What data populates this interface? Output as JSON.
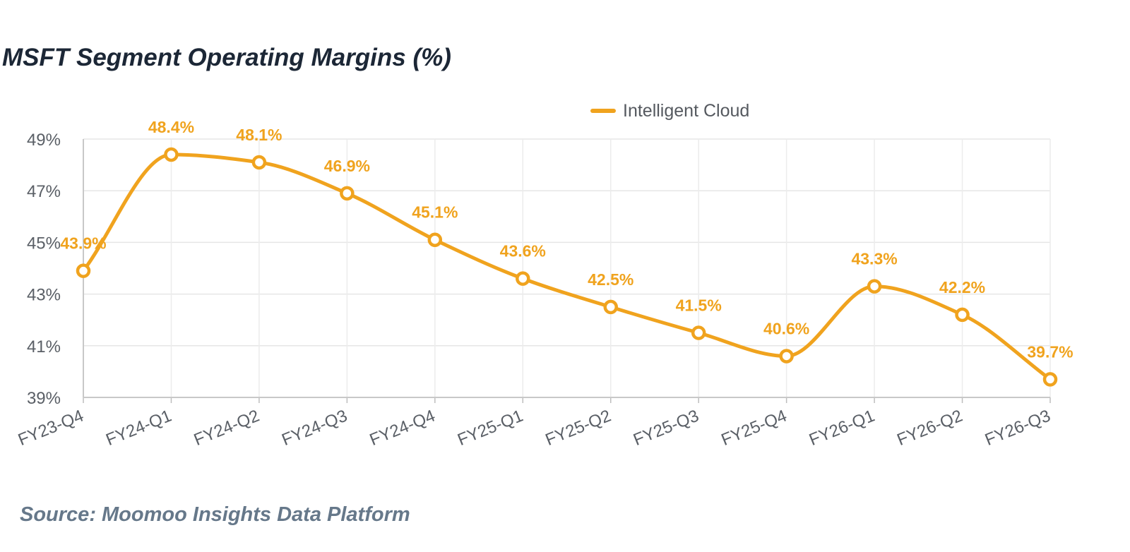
{
  "chart_data": {
    "type": "line",
    "title": "MSFT Segment Operating Margins (%)",
    "source": "Source: Moomoo Insights Data Platform",
    "categories": [
      "FY23-Q4",
      "FY24-Q1",
      "FY24-Q2",
      "FY24-Q3",
      "FY24-Q4",
      "FY25-Q1",
      "FY25-Q2",
      "FY25-Q3",
      "FY25-Q4",
      "FY26-Q1",
      "FY26-Q2",
      "FY26-Q3"
    ],
    "series": [
      {
        "name": "Intelligent Cloud",
        "values": [
          43.9,
          48.4,
          48.1,
          46.9,
          45.1,
          43.6,
          42.5,
          41.5,
          40.6,
          43.3,
          42.2,
          39.7
        ],
        "data_labels": [
          "43.9%",
          "48.4%",
          "48.1%",
          "46.9%",
          "45.1%",
          "43.6%",
          "42.5%",
          "41.5%",
          "40.6%",
          "43.3%",
          "42.2%",
          "39.7%"
        ],
        "color": "#f0a31e"
      }
    ],
    "yticks": [
      39,
      41,
      43,
      45,
      47,
      49
    ],
    "ytick_labels": [
      "39%",
      "41%",
      "43%",
      "45%",
      "47%",
      "49%"
    ],
    "ylim": [
      39,
      49
    ],
    "xlabel": "",
    "ylabel": "",
    "grid": true,
    "legend_position": "top-center",
    "smooth": true
  }
}
